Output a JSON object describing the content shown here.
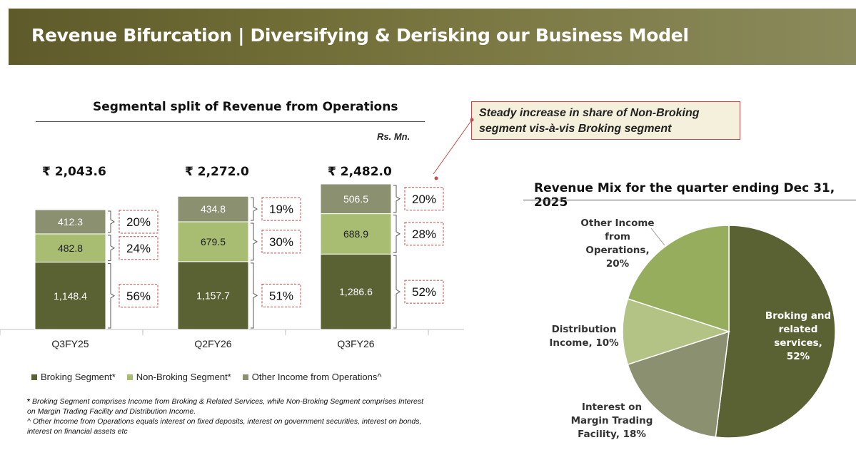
{
  "header": {
    "title": "Revenue Bifurcation | Diversifying & Derisking our Business Model"
  },
  "callout": {
    "text": "Steady increase in share of Non-Broking segment vis-à-vis Broking segment"
  },
  "colors": {
    "broking": "#5a6234",
    "non_broking": "#a8bd72",
    "other": "#8b9070",
    "pie_broking": "#5a6234",
    "pie_mtf": "#8b9070",
    "pie_dist": "#b3c385",
    "pie_other": "#97ad5e"
  },
  "chart_data": [
    {
      "type": "bar",
      "title": "Segmental split of Revenue from Operations",
      "unit": "Rs. Mn.",
      "stacked": true,
      "categories": [
        "Q3FY25",
        "Q2FY26",
        "Q3FY26"
      ],
      "totals": [
        "₹ 2,043.6",
        "₹ 2,272.0",
        "₹ 2,482.0"
      ],
      "series": [
        {
          "name": "Broking Segment*",
          "values": [
            1148.4,
            1157.7,
            1286.6
          ],
          "labels": [
            "1,148.4",
            "1,157.7",
            "1,286.6"
          ],
          "shares": [
            "56%",
            "51%",
            "52%"
          ]
        },
        {
          "name": "Non-Broking Segment*",
          "values": [
            482.8,
            679.5,
            688.9
          ],
          "labels": [
            "482.8",
            "679.5",
            "688.9"
          ],
          "shares": [
            "24%",
            "30%",
            "28%"
          ]
        },
        {
          "name": "Other Income from Operations^",
          "values": [
            412.3,
            434.8,
            506.5
          ],
          "labels": [
            "412.3",
            "434.8",
            "506.5"
          ],
          "shares": [
            "20%",
            "19%",
            "20%"
          ]
        }
      ],
      "legend": "bottom"
    },
    {
      "type": "pie",
      "title": "Revenue Mix for the quarter ending Dec 31, 2025",
      "slices": [
        {
          "label_lines": [
            "Broking and",
            "related",
            "services,",
            "52%"
          ],
          "value": 52
        },
        {
          "label_lines": [
            "Interest on",
            "Margin Trading",
            "Facility, 18%"
          ],
          "value": 18
        },
        {
          "label_lines": [
            "Distribution",
            "Income, 10%"
          ],
          "value": 10
        },
        {
          "label_lines": [
            "Other Income",
            "from",
            "Operations,",
            "20%"
          ],
          "value": 20
        }
      ]
    }
  ],
  "footnotes": {
    "star_mark": "*",
    "star": " Broking Segment comprises Income from Broking & Related Services, while Non-Broking Segment comprises Interest on Margin Trading Facility and Distribution Income.",
    "caret": "^ Other Income from Operations equals interest on fixed deposits, interest on government securities, interest on bonds, interest on financial assets etc"
  }
}
